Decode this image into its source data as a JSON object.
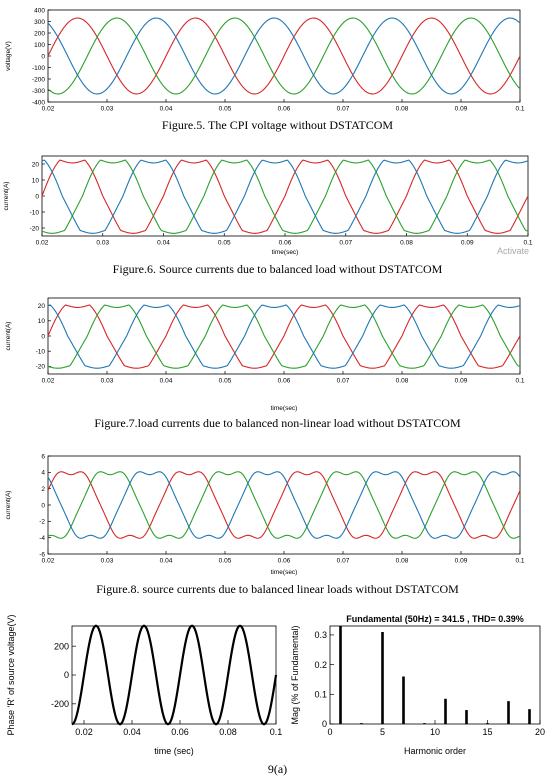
{
  "colors": {
    "phase_a": "#d62728",
    "phase_b": "#2ca02c",
    "phase_c": "#1f77b4",
    "axis": "#000000",
    "grid": "#dddddd"
  },
  "captions": {
    "fig5": "Figure.5. The CPI voltage  without DSTATCOM",
    "fig6": "Figure.6. Source currents due to balanced load without DSTATCOM",
    "fig7": "Figure.7.load  currents due to balanced non-linear load without DSTATCOM",
    "fig8": "Figure.8. source currents due to balanced linear loads without DSTATCOM",
    "fig9": "9(a)"
  },
  "watermark": "Activate",
  "chart_data": [
    {
      "id": "fig5",
      "type": "line",
      "title": "",
      "xlabel": "",
      "ylabel": "voltage(V)",
      "xlim": [
        0.02,
        0.1
      ],
      "ylim": [
        -400,
        400
      ],
      "xticks": [
        "0.02",
        "0.03",
        "0.04",
        "0.05",
        "0.06",
        "0.07",
        "0.08",
        "0.09",
        "0.1"
      ],
      "yticks": [
        "400",
        "300",
        "200",
        "100",
        "0",
        "-100",
        "-200",
        "-300",
        "-400"
      ],
      "waveform": "sine",
      "frequency_hz": 50,
      "amplitude": 330,
      "series": [
        {
          "phase_deg": 0
        },
        {
          "phase_deg": -120
        },
        {
          "phase_deg": 120
        }
      ]
    },
    {
      "id": "fig6",
      "type": "line",
      "title": "",
      "xlabel": "time(sec)",
      "ylabel": "current(A)",
      "xlim": [
        0.02,
        0.1
      ],
      "ylim": [
        -25,
        25
      ],
      "xticks": [
        "0.02",
        "0.03",
        "0.04",
        "0.05",
        "0.06",
        "0.07",
        "0.08",
        "0.09",
        "0.1"
      ],
      "yticks": [
        "20",
        "10",
        "0",
        "-10",
        "-20"
      ],
      "waveform": "six-pulse",
      "frequency_hz": 50,
      "amplitude": 22,
      "series": [
        {
          "phase_deg": 0
        },
        {
          "phase_deg": -120
        },
        {
          "phase_deg": 120
        }
      ]
    },
    {
      "id": "fig7",
      "type": "line",
      "title": "",
      "xlabel": "time(sec)",
      "ylabel": "current(A)",
      "xlim": [
        0.02,
        0.1
      ],
      "ylim": [
        -25,
        25
      ],
      "xticks": [
        "0.02",
        "0.03",
        "0.04",
        "0.05",
        "0.06",
        "0.07",
        "0.08",
        "0.09",
        "0.1"
      ],
      "yticks": [
        "20",
        "10",
        "0",
        "-10",
        "-20"
      ],
      "waveform": "six-pulse",
      "frequency_hz": 50,
      "amplitude": 20,
      "series": [
        {
          "phase_deg": 0
        },
        {
          "phase_deg": -120
        },
        {
          "phase_deg": 120
        }
      ]
    },
    {
      "id": "fig8",
      "type": "line",
      "title": "",
      "xlabel": "time(sec)",
      "ylabel": "current(A)",
      "xlim": [
        0.02,
        0.1
      ],
      "ylim": [
        -6,
        6
      ],
      "xticks": [
        "0.02",
        "0.03",
        "0.04",
        "0.05",
        "0.06",
        "0.07",
        "0.08",
        "0.09",
        "0.1"
      ],
      "yticks": [
        "6",
        "4",
        "2",
        "0",
        "-2",
        "-4",
        "-6"
      ],
      "waveform": "distorted-sine",
      "frequency_hz": 50,
      "amplitude": 4.7,
      "series": [
        {
          "phase_deg": 20
        },
        {
          "phase_deg": -100
        },
        {
          "phase_deg": 140
        }
      ]
    },
    {
      "id": "fig9a_wave",
      "type": "line",
      "title": "",
      "xlabel": "time (sec)",
      "ylabel": "Phase 'R' of source voltage(V)",
      "xlim": [
        0.015,
        0.1
      ],
      "ylim": [
        -340,
        340
      ],
      "xticks": [
        "0.02",
        "0.04",
        "0.06",
        "0.08",
        "0.1"
      ],
      "yticks": [
        "200",
        "0",
        "-200"
      ],
      "waveform": "sine",
      "frequency_hz": 50,
      "amplitude": 341.5,
      "series": [
        {
          "phase_deg": 0
        }
      ]
    },
    {
      "id": "fig9a_fft",
      "type": "bar",
      "title": "Fundamental (50Hz) = 341.5 , THD= 0.39%",
      "xlabel": "Harmonic order",
      "ylabel": "Mag (% of Fundamental)",
      "xlim": [
        0,
        20
      ],
      "ylim": [
        0,
        0.33
      ],
      "xticks": [
        "0",
        "5",
        "10",
        "15",
        "20"
      ],
      "yticks": [
        "0.3",
        "0.2",
        "0.1",
        "0"
      ],
      "categories": [
        1,
        3,
        5,
        7,
        9,
        11,
        13,
        15,
        17,
        19
      ],
      "values": [
        0.33,
        0.003,
        0.31,
        0.16,
        0.003,
        0.085,
        0.047,
        0.003,
        0.077,
        0.05
      ]
    }
  ]
}
